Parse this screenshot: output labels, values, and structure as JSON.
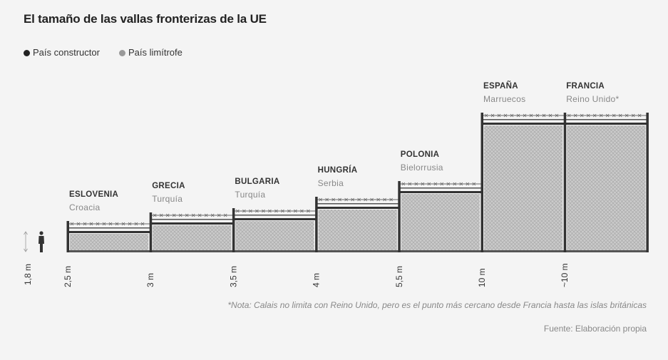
{
  "chart_data": {
    "type": "bar",
    "title": "El tamaño de las vallas fronterizas de la UE",
    "legend": [
      {
        "label": "País constructor",
        "color": "#222222"
      },
      {
        "label": "País limítrofe",
        "color": "#999999"
      }
    ],
    "reference": {
      "label": "1,8 m",
      "value": 1.8,
      "icon": "person-silhouette-icon"
    },
    "categories": [
      "ESLOVENIA",
      "GRECIA",
      "BULGARIA",
      "HUNGRÍA",
      "POLONIA",
      "ESPAÑA",
      "FRANCIA"
    ],
    "neighbors": [
      "Croacia",
      "Turquía",
      "Turquía",
      "Serbia",
      "Bielorrusia",
      "Marruecos",
      "Reino Unido*"
    ],
    "values": [
      2.5,
      3,
      3.5,
      4,
      5.5,
      10,
      10
    ],
    "value_labels": [
      "2,5 m",
      "3 m",
      "3,5 m",
      "4 m",
      "5,5 m",
      "10 m",
      "~10 m"
    ],
    "xlabel": "",
    "ylabel": "",
    "colors": {
      "post": "#333333",
      "mesh": "#c9c9c9",
      "mesh_line": "#a8a8a8",
      "rail": "#555555",
      "wire": "#666666"
    }
  },
  "footer": {
    "note": "*Nota: Calais no limita con Reino Unido, pero es el punto más cercano desde Francia hasta las islas británicas",
    "source": "Fuente: Elaboración propia"
  }
}
